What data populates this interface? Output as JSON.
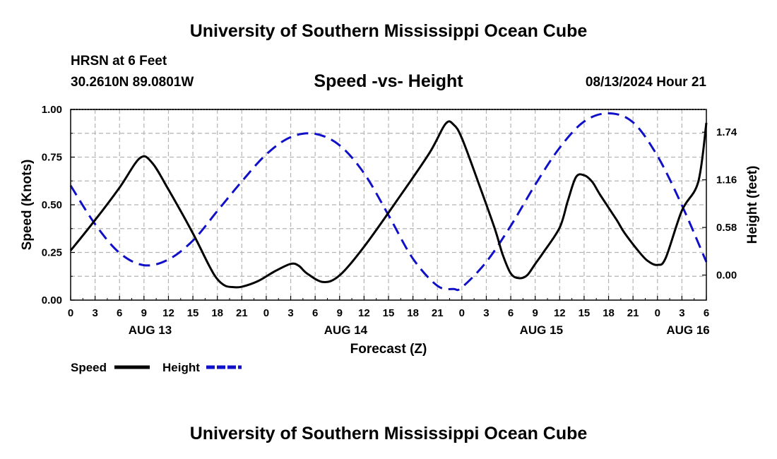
{
  "header": {
    "title": "University of Southern Mississippi Ocean Cube",
    "station": "HRSN at 6 Feet",
    "coordinates": "30.2610N  89.0801W",
    "subtitle": "Speed -vs- Height",
    "datetime": "08/13/2024 Hour 21"
  },
  "footer": {
    "title": "University of Southern Mississippi Ocean Cube"
  },
  "colors": {
    "speed": "#000000",
    "height": "#1010c8",
    "grid": "#b4b4b4"
  },
  "chart_data": {
    "type": "line",
    "title": "Speed -vs- Height",
    "xlabel": "Forecast (Z)",
    "ylabel": "Speed (Knots)",
    "y2label": "Height (feet)",
    "xlim": [
      0,
      78
    ],
    "ylim": [
      0,
      1.0
    ],
    "y2lim": [
      -0.305,
      2.017
    ],
    "grid": true,
    "legend_position": "bottom-left",
    "x_tick_labels": [
      "0",
      "3",
      "6",
      "9",
      "12",
      "15",
      "18",
      "21",
      "0",
      "3",
      "6",
      "9",
      "12",
      "15",
      "18",
      "21",
      "0",
      "3",
      "6",
      "9",
      "12",
      "15",
      "18",
      "21",
      "0",
      "3",
      "6"
    ],
    "day_labels": [
      {
        "label": "AUG 13",
        "x": 9.75
      },
      {
        "label": "AUG 14",
        "x": 33.75
      },
      {
        "label": "AUG 15",
        "x": 57.75
      },
      {
        "label": "AUG 16",
        "x": 75.75
      }
    ],
    "y_ticks": [
      0,
      0.25,
      0.5,
      0.75,
      1.0
    ],
    "y_tick_labels": [
      "0.00",
      "0.25",
      "0.50",
      "0.75",
      "1.00"
    ],
    "y2_ticks": [
      0.0,
      0.58,
      1.16,
      1.74
    ],
    "y2_tick_labels": [
      "0.00",
      "0.58",
      "1.16",
      "1.74"
    ],
    "series": [
      {
        "name": "Speed",
        "axis": "left",
        "style": "solid",
        "x": [
          0,
          3,
          6,
          8.5,
          10,
          12,
          15,
          17,
          18,
          19,
          20,
          21,
          23,
          25,
          27,
          28,
          29,
          31,
          33,
          36,
          40,
          44,
          46,
          47,
          48,
          50,
          52,
          53,
          54,
          55,
          56,
          57,
          58,
          60,
          61,
          62,
          63,
          64,
          65,
          67,
          68,
          70,
          71,
          72,
          73,
          75,
          77,
          78
        ],
        "values": [
          0.26,
          0.42,
          0.59,
          0.745,
          0.72,
          0.58,
          0.35,
          0.18,
          0.11,
          0.075,
          0.068,
          0.07,
          0.1,
          0.15,
          0.19,
          0.18,
          0.14,
          0.095,
          0.13,
          0.28,
          0.52,
          0.77,
          0.925,
          0.92,
          0.85,
          0.62,
          0.38,
          0.24,
          0.14,
          0.115,
          0.13,
          0.19,
          0.25,
          0.38,
          0.52,
          0.645,
          0.655,
          0.62,
          0.55,
          0.42,
          0.35,
          0.24,
          0.2,
          0.185,
          0.22,
          0.47,
          0.62,
          0.93
        ]
      },
      {
        "name": "Height",
        "axis": "right",
        "style": "dashed",
        "x": [
          0,
          3,
          6,
          9,
          12,
          15,
          18,
          21,
          24,
          27,
          30,
          33,
          36,
          39,
          42,
          45,
          47,
          48,
          51,
          54,
          57,
          60,
          63,
          66,
          69,
          72,
          75,
          78
        ],
        "values": [
          1.09,
          0.62,
          0.27,
          0.12,
          0.19,
          0.42,
          0.78,
          1.14,
          1.47,
          1.68,
          1.72,
          1.58,
          1.24,
          0.73,
          0.2,
          -0.13,
          -0.17,
          -0.15,
          0.16,
          0.6,
          1.1,
          1.55,
          1.87,
          1.97,
          1.86,
          1.45,
          0.85,
          0.16
        ]
      }
    ]
  }
}
